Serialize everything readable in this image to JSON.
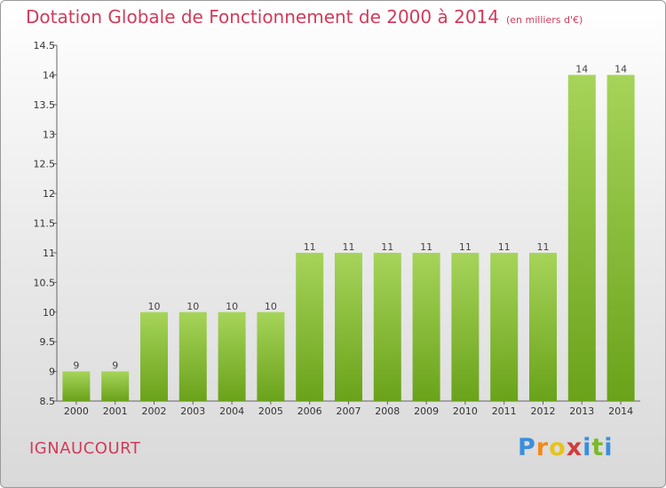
{
  "header": {
    "title": "Dotation Globale de Fonctionnement de 2000 à 2014",
    "subtitle": "(en milliers d'€)"
  },
  "footer": {
    "commune": "IGNAUCOURT",
    "logo": "Proxiti"
  },
  "colors": {
    "accent": "#d23b5a",
    "bar_light": "#a6d45a",
    "bar_dark": "#6aa21a",
    "logo_letters": [
      "#3a8ede",
      "#f08a1c",
      "#e8c21a",
      "#d23b3b",
      "#3a8ede",
      "#7bb82a",
      "#3a8ede"
    ]
  },
  "chart_data": {
    "type": "bar",
    "categories": [
      "2000",
      "2001",
      "2002",
      "2003",
      "2004",
      "2005",
      "2006",
      "2007",
      "2008",
      "2009",
      "2010",
      "2011",
      "2012",
      "2013",
      "2014"
    ],
    "values": [
      9,
      9,
      10,
      10,
      10,
      10,
      11,
      11,
      11,
      11,
      11,
      11,
      11,
      14,
      14
    ],
    "ylim": [
      8.5,
      14.5
    ],
    "yticks": [
      8.5,
      9,
      9.5,
      10,
      10.5,
      11,
      11.5,
      12,
      12.5,
      13,
      13.5,
      14,
      14.5
    ],
    "grid": false
  }
}
